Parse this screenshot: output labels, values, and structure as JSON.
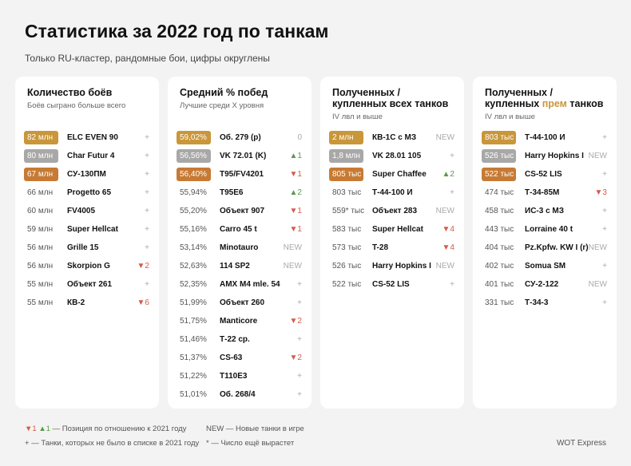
{
  "header": {
    "title": "Статистика за 2022 год по танкам",
    "subtitle": "Только RU-кластер, рандомные бои, цифры округлены"
  },
  "panels": [
    {
      "title": [
        {
          "text": "Количество боёв"
        }
      ],
      "note": "Боёв сыграно больше всего",
      "rows": [
        {
          "value": "82 млн",
          "tank": "ELC EVEN 90",
          "change": "+"
        },
        {
          "value": "80 млн",
          "tank": "Char Futur 4",
          "change": "+"
        },
        {
          "value": "67 млн",
          "tank": "СУ-130ПМ",
          "change": "+"
        },
        {
          "value": "66 млн",
          "tank": "Progetto 65",
          "change": "+"
        },
        {
          "value": "60 млн",
          "tank": "FV4005",
          "change": "+"
        },
        {
          "value": "59 млн",
          "tank": "Super Hellcat",
          "change": "+"
        },
        {
          "value": "56 млн",
          "tank": "Grille 15",
          "change": "+"
        },
        {
          "value": "56 млн",
          "tank": "Skorpion G",
          "change": "▼2"
        },
        {
          "value": "55 млн",
          "tank": "Объект 261",
          "change": "+"
        },
        {
          "value": "55 млн",
          "tank": "КВ-2",
          "change": "▼6"
        }
      ]
    },
    {
      "title": [
        {
          "text": "Средний % побед"
        }
      ],
      "note": "Лучшие среди X уровня",
      "rows": [
        {
          "value": "59,02%",
          "tank": "Об. 279 (р)",
          "change": "0"
        },
        {
          "value": "56,56%",
          "tank": "VK 72.01 (K)",
          "change": "▲1"
        },
        {
          "value": "56,40%",
          "tank": "T95/FV4201",
          "change": "▼1"
        },
        {
          "value": "55,94%",
          "tank": "T95E6",
          "change": "▲2"
        },
        {
          "value": "55,20%",
          "tank": "Объект 907",
          "change": "▼1"
        },
        {
          "value": "55,16%",
          "tank": "Carro 45 t",
          "change": "▼1"
        },
        {
          "value": "53,14%",
          "tank": "Minotauro",
          "change": "NEW"
        },
        {
          "value": "52,63%",
          "tank": "114 SP2",
          "change": "NEW"
        },
        {
          "value": "52,35%",
          "tank": "AMX M4 mle. 54",
          "change": "+"
        },
        {
          "value": "51,99%",
          "tank": "Объект 260",
          "change": "+"
        },
        {
          "value": "51,75%",
          "tank": "Manticore",
          "change": "▼2"
        },
        {
          "value": "51,46%",
          "tank": "Т-22 ср.",
          "change": "+"
        },
        {
          "value": "51,37%",
          "tank": "CS-63",
          "change": "▼2"
        },
        {
          "value": "51,22%",
          "tank": "T110E3",
          "change": "+"
        },
        {
          "value": "51,01%",
          "tank": "Об. 268/4",
          "change": "+"
        }
      ]
    },
    {
      "title": [
        {
          "text": "Полученных / купленных всех танков"
        }
      ],
      "note": "IV лвл и выше",
      "rows": [
        {
          "value": "2 млн",
          "tank": "КВ-1С с МЗ",
          "change": "NEW"
        },
        {
          "value": "1,8 млн",
          "tank": "VK 28.01 105",
          "change": "+"
        },
        {
          "value": "805 тыс",
          "tank": "Super Chaffee",
          "change": "▲2"
        },
        {
          "value": "803 тыс",
          "tank": "Т-44-100 И",
          "change": "+"
        },
        {
          "value": "559* тыс",
          "tank": "Объект 283",
          "change": "NEW"
        },
        {
          "value": "583 тыс",
          "tank": "Super Hellcat",
          "change": "▼4"
        },
        {
          "value": "573 тыс",
          "tank": "T-28",
          "change": "▼4"
        },
        {
          "value": "526 тыс",
          "tank": "Harry Hopkins I",
          "change": "NEW"
        },
        {
          "value": "522 тыс",
          "tank": "CS-52 LIS",
          "change": "+"
        }
      ]
    },
    {
      "title": [
        {
          "text": "Полученных / купленных "
        },
        {
          "text": "прем",
          "accent": true
        },
        {
          "text": " танков"
        }
      ],
      "note": "IV лвл и выше",
      "rows": [
        {
          "value": "803 тыс",
          "tank": "Т-44-100 И",
          "change": "+"
        },
        {
          "value": "526 тыс",
          "tank": "Harry Hopkins I",
          "change": "NEW"
        },
        {
          "value": "522 тыс",
          "tank": "CS-52 LIS",
          "change": "+"
        },
        {
          "value": "474 тыс",
          "tank": "Т-34-85М",
          "change": "▼3"
        },
        {
          "value": "458 тыс",
          "tank": "ИС-3 с МЗ",
          "change": "+"
        },
        {
          "value": "443 тыс",
          "tank": "Lorraine 40 t",
          "change": "+"
        },
        {
          "value": "404 тыс",
          "tank": "Pz.Kpfw. KW I (r)",
          "change": "NEW"
        },
        {
          "value": "402 тыс",
          "tank": "Somua SM",
          "change": "+"
        },
        {
          "value": "401 тыс",
          "tank": "СУ-2-122",
          "change": "NEW"
        },
        {
          "value": "331 тыс",
          "tank": "Т-34-3",
          "change": "+"
        }
      ]
    }
  ],
  "legend": [
    {
      "keys": [
        "▼1",
        "▲1"
      ],
      "text": "— Позиция по отношению к 2021 году"
    },
    {
      "keys": [
        "NEW"
      ],
      "text": "— Новые танки в игре"
    },
    {
      "keys": [
        "+"
      ],
      "text": "— Танки, которых не было в списке в 2021 году"
    },
    {
      "keys": [
        "*"
      ],
      "text": "— Число ещё вырастет"
    }
  ],
  "footer": "WOT Express"
}
